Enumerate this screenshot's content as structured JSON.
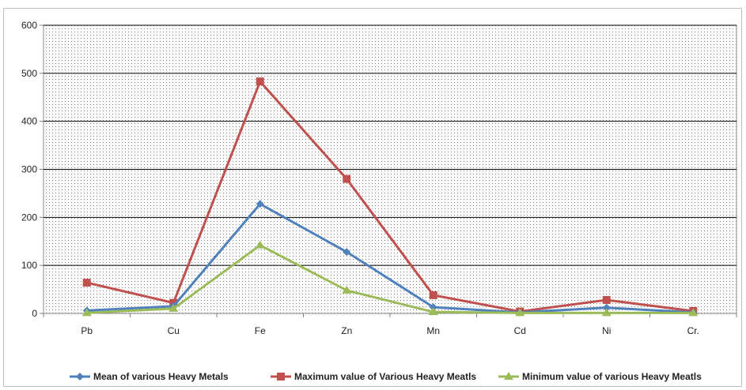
{
  "chart_data": {
    "type": "line",
    "categories": [
      "Pb",
      "Cu",
      "Fe",
      "Zn",
      "Mn",
      "Cd",
      "Ni",
      "Cr."
    ],
    "ylim": [
      0,
      600
    ],
    "yticks": [
      0,
      100,
      200,
      300,
      400,
      500,
      600
    ],
    "grid": true,
    "legend_position": "bottom",
    "series": [
      {
        "name": "Mean of various Heavy Metals",
        "color": "#4f81bd",
        "marker": "diamond",
        "values": [
          6,
          15,
          228,
          128,
          13,
          2,
          12,
          2
        ]
      },
      {
        "name": "Maximum value of Various Heavy Meatls",
        "color": "#c0504d",
        "marker": "square",
        "values": [
          64,
          22,
          483,
          280,
          38,
          4,
          28,
          5
        ]
      },
      {
        "name": "Minimum value of various Heavy Meatls",
        "color": "#9bbb59",
        "marker": "triangle",
        "values": [
          1,
          10,
          142,
          48,
          3,
          1,
          1,
          1
        ]
      }
    ]
  }
}
